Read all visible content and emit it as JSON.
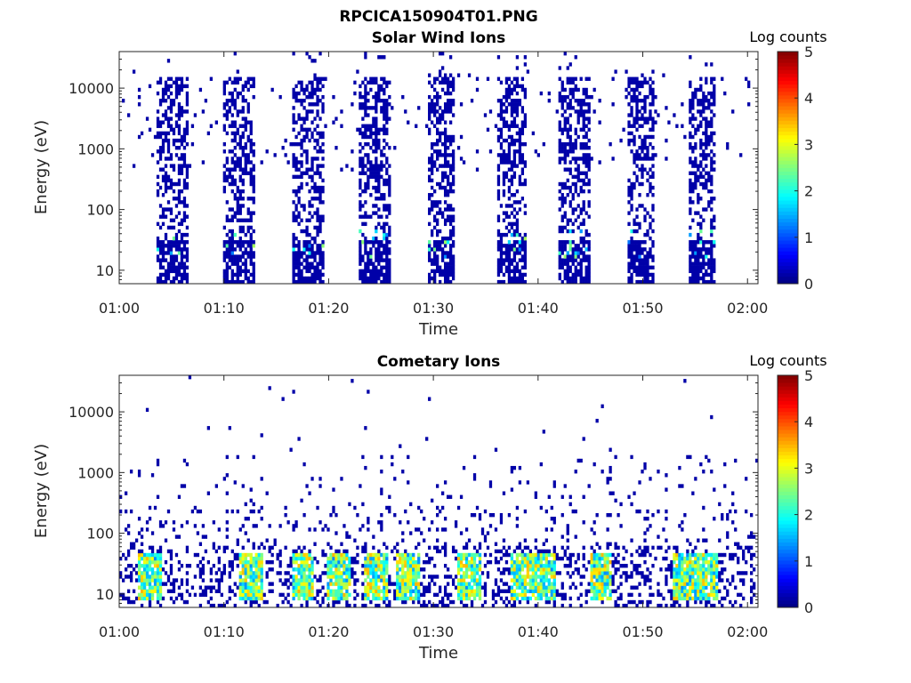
{
  "figure": {
    "title": "RPCICA150904T01.PNG"
  },
  "chart_data": [
    {
      "type": "heatmap",
      "title": "Solar Wind Ions",
      "xlabel": "Time",
      "ylabel": "Energy (eV)",
      "x_ticks": [
        "01:00",
        "01:10",
        "01:20",
        "01:30",
        "01:40",
        "01:50",
        "02:00"
      ],
      "x_range_minutes": [
        0,
        61
      ],
      "y_scale": "log",
      "y_ticks": [
        "10",
        "100",
        "1000",
        "10000"
      ],
      "y_range": [
        6,
        40000
      ],
      "colorbar": {
        "title": "Log counts",
        "range": [
          0,
          5
        ],
        "ticks": [
          "0",
          "1",
          "2",
          "3",
          "4",
          "5"
        ],
        "colormap": "jet"
      },
      "grid": false,
      "bursts_start_minute": [
        3.5,
        10,
        16.5,
        23,
        29.5,
        36,
        42,
        48.5,
        54.5
      ],
      "bursts_end_minute": [
        6.5,
        13,
        19.5,
        26,
        32,
        39,
        45,
        51,
        57
      ]
    },
    {
      "type": "heatmap",
      "title": "Cometary Ions",
      "xlabel": "Time",
      "ylabel": "Energy (eV)",
      "x_ticks": [
        "01:00",
        "01:10",
        "01:20",
        "01:30",
        "01:40",
        "01:50",
        "02:00"
      ],
      "x_range_minutes": [
        0,
        61
      ],
      "y_scale": "log",
      "y_ticks": [
        "10",
        "100",
        "1000",
        "10000"
      ],
      "y_range": [
        6,
        40000
      ],
      "colorbar": {
        "title": "Log counts",
        "range": [
          0,
          5
        ],
        "ticks": [
          "0",
          "1",
          "2",
          "3",
          "4",
          "5"
        ],
        "colormap": "jet"
      },
      "grid": false,
      "hot_spots_minute": [
        3,
        12.5,
        17.5,
        21,
        24.5,
        27.5,
        33.5,
        38.5,
        40.5,
        46,
        54,
        56
      ]
    }
  ]
}
